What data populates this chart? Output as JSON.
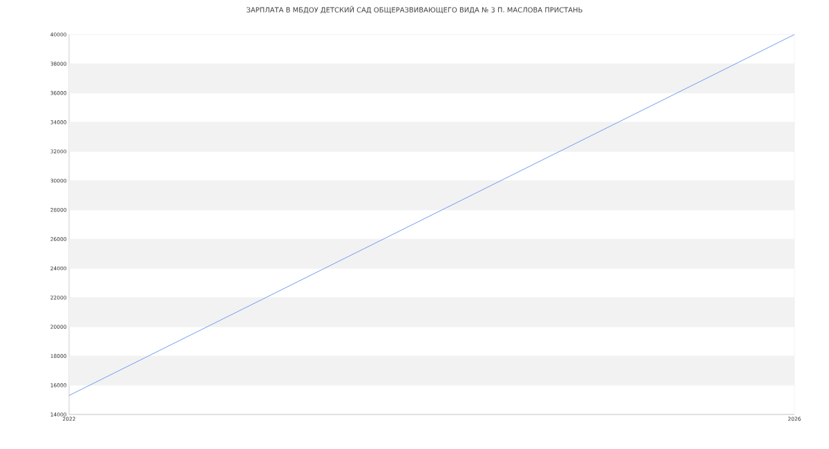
{
  "chart_data": {
    "type": "line",
    "title": "ЗАРПЛАТА В МБДОУ ДЕТСКИЙ САД ОБЩЕРАЗВИВАЮЩЕГО ВИДА № 3 П. МАСЛОВА ПРИСТАНЬ",
    "x": [
      2022,
      2026
    ],
    "series": [
      {
        "color": "#6f9cf0",
        "values": [
          15300,
          40000
        ]
      }
    ],
    "xlim": [
      2022,
      2026
    ],
    "xticks": [
      2022,
      2026
    ],
    "ylim": [
      14000,
      40000
    ],
    "yticks": [
      14000,
      16000,
      18000,
      20000,
      22000,
      24000,
      26000,
      28000,
      30000,
      32000,
      34000,
      36000,
      38000,
      40000
    ],
    "grid": "y",
    "marker": "none",
    "line_style": "solid"
  }
}
